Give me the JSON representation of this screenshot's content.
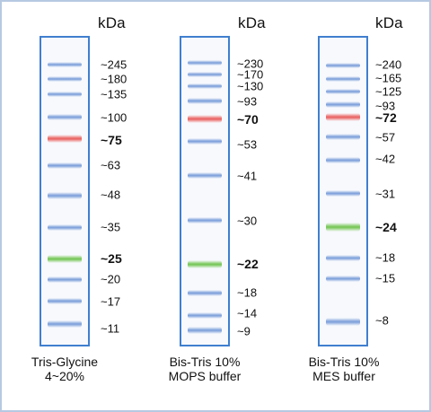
{
  "unit_label": "kDa",
  "colors": {
    "lane_border": "#3f7fcf",
    "band_blue": "#6d94d6",
    "band_red": "#ea6767",
    "band_green": "#7ac85c"
  },
  "ladders": [
    {
      "caption": [
        "Tris-Glycine",
        "4~20%"
      ],
      "markers": [
        {
          "label": "~245",
          "kda": 245,
          "color": "blue"
        },
        {
          "label": "~180",
          "kda": 180,
          "color": "blue"
        },
        {
          "label": "~135",
          "kda": 135,
          "color": "blue"
        },
        {
          "label": "~100",
          "kda": 100,
          "color": "blue"
        },
        {
          "label": "~75",
          "kda": 75,
          "color": "red",
          "bold": true
        },
        {
          "label": "~63",
          "kda": 63,
          "color": "blue"
        },
        {
          "label": "~48",
          "kda": 48,
          "color": "blue"
        },
        {
          "label": "~35",
          "kda": 35,
          "color": "blue"
        },
        {
          "label": "~25",
          "kda": 25,
          "color": "green",
          "bold": true
        },
        {
          "label": "~20",
          "kda": 20,
          "color": "blue"
        },
        {
          "label": "~17",
          "kda": 17,
          "color": "blue"
        },
        {
          "label": "~11",
          "kda": 11,
          "color": "blue"
        }
      ]
    },
    {
      "caption": [
        "Bis-Tris 10%",
        "MOPS buffer"
      ],
      "markers": [
        {
          "label": "~230",
          "kda": 230,
          "color": "blue"
        },
        {
          "label": "~170",
          "kda": 170,
          "color": "blue"
        },
        {
          "label": "~130",
          "kda": 130,
          "color": "blue"
        },
        {
          "label": "~93",
          "kda": 93,
          "color": "blue"
        },
        {
          "label": "~70",
          "kda": 70,
          "color": "red",
          "bold": true
        },
        {
          "label": "~53",
          "kda": 53,
          "color": "blue"
        },
        {
          "label": "~41",
          "kda": 41,
          "color": "blue"
        },
        {
          "label": "~30",
          "kda": 30,
          "color": "blue"
        },
        {
          "label": "~22",
          "kda": 22,
          "color": "green",
          "bold": true
        },
        {
          "label": "~18",
          "kda": 18,
          "color": "blue"
        },
        {
          "label": "~14",
          "kda": 14,
          "color": "blue"
        },
        {
          "label": "~9",
          "kda": 9,
          "color": "blue"
        }
      ]
    },
    {
      "caption": [
        "Bis-Tris 10%",
        "MES buffer"
      ],
      "markers": [
        {
          "label": "~240",
          "kda": 240,
          "color": "blue"
        },
        {
          "label": "~165",
          "kda": 165,
          "color": "blue"
        },
        {
          "label": "~125",
          "kda": 125,
          "color": "blue"
        },
        {
          "label": "~93",
          "kda": 93,
          "color": "blue"
        },
        {
          "label": "~72",
          "kda": 72,
          "color": "red",
          "bold": true
        },
        {
          "label": "~57",
          "kda": 57,
          "color": "blue"
        },
        {
          "label": "~42",
          "kda": 42,
          "color": "blue"
        },
        {
          "label": "~31",
          "kda": 31,
          "color": "blue"
        },
        {
          "label": "~24",
          "kda": 24,
          "color": "green",
          "bold": true
        },
        {
          "label": "~18",
          "kda": 18,
          "color": "blue"
        },
        {
          "label": "~15",
          "kda": 15,
          "color": "blue"
        },
        {
          "label": "~8",
          "kda": 8,
          "color": "blue"
        }
      ]
    }
  ]
}
